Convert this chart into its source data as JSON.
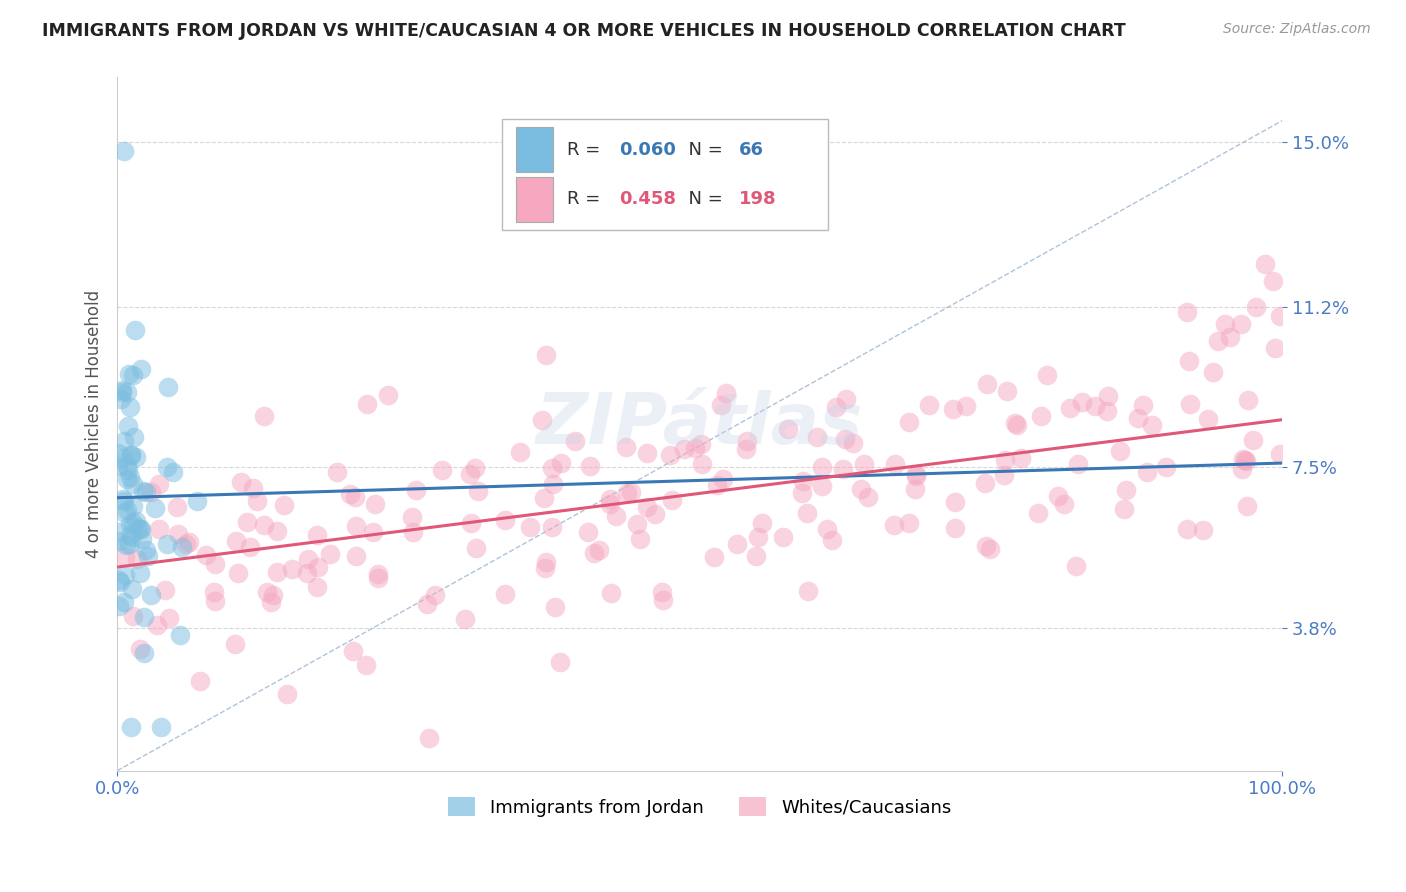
{
  "title": "IMMIGRANTS FROM JORDAN VS WHITE/CAUCASIAN 4 OR MORE VEHICLES IN HOUSEHOLD CORRELATION CHART",
  "source": "Source: ZipAtlas.com",
  "ylabel": "4 or more Vehicles in Household",
  "ytick_labels": [
    "3.8%",
    "7.5%",
    "11.2%",
    "15.0%"
  ],
  "ytick_vals": [
    3.8,
    7.5,
    11.2,
    15.0
  ],
  "blue_line_y_start": 6.8,
  "blue_line_y_end": 7.6,
  "pink_line_y_start": 5.2,
  "pink_line_y_end": 8.6,
  "dashed_line_y_start": 0.5,
  "dashed_line_y_end": 15.5,
  "bg_color": "#ffffff",
  "grid_color": "#d8d8d8",
  "title_color": "#222222",
  "source_color": "#999999",
  "blue_color": "#7bbde0",
  "pink_color": "#f5a8c0",
  "blue_line_color": "#3a78b5",
  "pink_line_color": "#e05878",
  "dashed_line_color": "#9ab4d0",
  "axis_tick_color": "#4a7cc4",
  "xmin": 0.0,
  "xmax": 100.0,
  "ymin": 0.5,
  "ymax": 16.5,
  "legend_R1": "0.060",
  "legend_N1": "66",
  "legend_R2": "0.458",
  "legend_N2": "198",
  "legend_label1": "Immigrants from Jordan",
  "legend_label2": "Whites/Caucasians"
}
